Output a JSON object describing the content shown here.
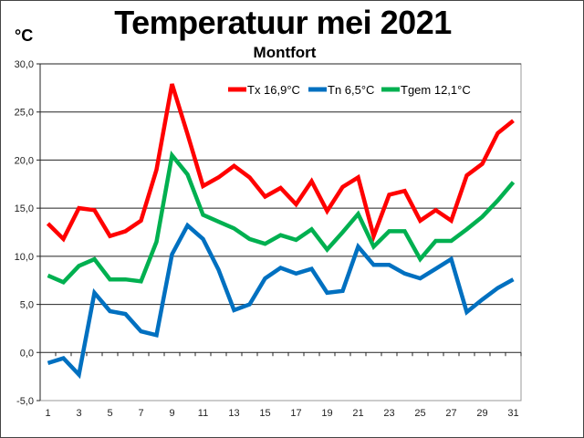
{
  "chart_data": {
    "type": "line",
    "title": "Temperatuur mei 2021",
    "subtitle": "Montfort",
    "ylabel": "°C",
    "xlabel": "",
    "ylim": [
      -5,
      30
    ],
    "yticks": [
      "-5,0",
      "0,0",
      "5,0",
      "10,0",
      "15,0",
      "20,0",
      "25,0",
      "30,0"
    ],
    "ytick_values": [
      -5,
      0,
      5,
      10,
      15,
      20,
      25,
      30
    ],
    "x": [
      1,
      2,
      3,
      4,
      5,
      6,
      7,
      8,
      9,
      10,
      11,
      12,
      13,
      14,
      15,
      16,
      17,
      18,
      19,
      20,
      21,
      22,
      23,
      24,
      25,
      26,
      27,
      28,
      29,
      30,
      31
    ],
    "xtick_labels": [
      "1",
      "3",
      "5",
      "7",
      "9",
      "11",
      "13",
      "15",
      "17",
      "19",
      "21",
      "23",
      "25",
      "27",
      "29",
      "31"
    ],
    "grid": true,
    "legend_position": "top-right",
    "series": [
      {
        "name": "Tx 16,9°C",
        "color": "#ff0000",
        "values": [
          13.4,
          11.8,
          15.0,
          14.8,
          12.1,
          12.6,
          13.7,
          19.0,
          27.9,
          22.7,
          17.3,
          18.2,
          19.4,
          18.2,
          16.2,
          17.1,
          15.4,
          17.8,
          14.7,
          17.2,
          18.2,
          12.1,
          16.4,
          16.8,
          13.7,
          14.8,
          13.7,
          18.4,
          19.6,
          22.8,
          24.1
        ]
      },
      {
        "name": "Tn 6,5°C",
        "color": "#0070c0",
        "values": [
          -1.1,
          -0.6,
          -2.3,
          6.2,
          4.3,
          4.0,
          2.2,
          1.8,
          10.2,
          13.2,
          11.8,
          8.6,
          4.4,
          5.0,
          7.7,
          8.8,
          8.2,
          8.7,
          6.2,
          6.4,
          11.0,
          9.1,
          9.1,
          8.2,
          7.7,
          8.7,
          9.7,
          4.2,
          5.5,
          6.7,
          7.6
        ]
      },
      {
        "name": "Tgem 12,1°C",
        "color": "#00b050",
        "values": [
          8.0,
          7.3,
          9.0,
          9.7,
          7.6,
          7.6,
          7.4,
          11.5,
          20.5,
          18.5,
          14.3,
          13.6,
          12.9,
          11.8,
          11.3,
          12.2,
          11.7,
          12.8,
          10.7,
          12.5,
          14.4,
          11.0,
          12.6,
          12.6,
          9.7,
          11.6,
          11.6,
          12.8,
          14.1,
          15.8,
          17.7
        ]
      }
    ]
  }
}
